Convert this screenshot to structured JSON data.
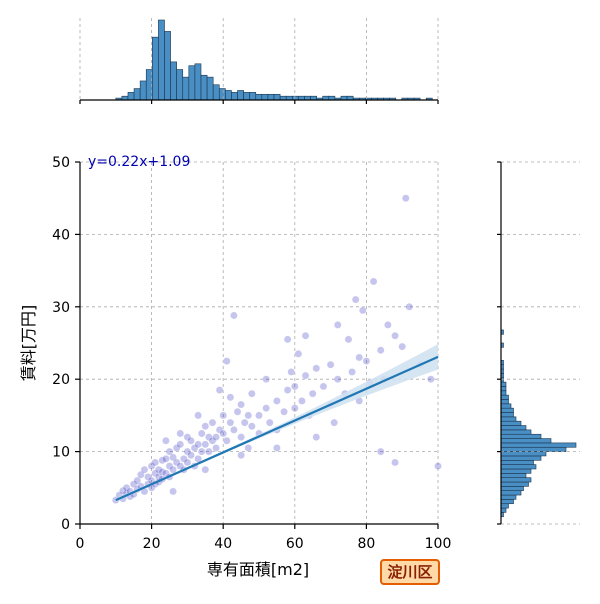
{
  "chart_data": {
    "type": "scatter",
    "subtype": "jointplot-with-regression",
    "title": "",
    "xlabel": "専有面積[m2]",
    "ylabel": "賃料[万円]",
    "xlim": [
      0,
      100
    ],
    "ylim": [
      0,
      50
    ],
    "x_ticks": [
      "0",
      "20",
      "40",
      "60",
      "80",
      "100"
    ],
    "y_ticks": [
      "0",
      "10",
      "20",
      "30",
      "40",
      "50"
    ],
    "grid": true,
    "regression_equation": "y=0.22x+1.09",
    "regression": {
      "slope": 0.22,
      "intercept": 1.09,
      "x_range": [
        10,
        100
      ],
      "ci_color": "#cfe0f0"
    },
    "point_color": "#3030c0",
    "line_color": "#1f77b4",
    "hist_color": "#4a8fc4",
    "badge_label": "淀川区",
    "points": [
      [
        10,
        3.3
      ],
      [
        11,
        4.0
      ],
      [
        12,
        4.6
      ],
      [
        12,
        3.5
      ],
      [
        13,
        4.2
      ],
      [
        13,
        5.0
      ],
      [
        14,
        3.8
      ],
      [
        14,
        4.5
      ],
      [
        15,
        4.1
      ],
      [
        15,
        5.5
      ],
      [
        16,
        4.8
      ],
      [
        16,
        6.0
      ],
      [
        17,
        5.2
      ],
      [
        17,
        6.8
      ],
      [
        18,
        4.5
      ],
      [
        18,
        7.5
      ],
      [
        19,
        5.5
      ],
      [
        19,
        6.5
      ],
      [
        20,
        6.0
      ],
      [
        20,
        8.0
      ],
      [
        20,
        5.0
      ],
      [
        21,
        7.0
      ],
      [
        21,
        5.5
      ],
      [
        21,
        8.5
      ],
      [
        22,
        6.5
      ],
      [
        22,
        7.5
      ],
      [
        22,
        5.8
      ],
      [
        23,
        7.2
      ],
      [
        23,
        8.8
      ],
      [
        23,
        6.2
      ],
      [
        24,
        7.0
      ],
      [
        24,
        9.0
      ],
      [
        25,
        8.0
      ],
      [
        25,
        6.5
      ],
      [
        25,
        10.0
      ],
      [
        26,
        7.5
      ],
      [
        26,
        9.2
      ],
      [
        27,
        8.5
      ],
      [
        27,
        10.5
      ],
      [
        28,
        8.0
      ],
      [
        28,
        11.0
      ],
      [
        29,
        9.0
      ],
      [
        29,
        7.5
      ],
      [
        30,
        10.0
      ],
      [
        30,
        8.5
      ],
      [
        30,
        12.0
      ],
      [
        31,
        9.5
      ],
      [
        31,
        11.5
      ],
      [
        32,
        10.5
      ],
      [
        32,
        8.0
      ],
      [
        33,
        11.0
      ],
      [
        33,
        9.0
      ],
      [
        34,
        12.5
      ],
      [
        34,
        10.0
      ],
      [
        35,
        11.0
      ],
      [
        35,
        13.5
      ],
      [
        36,
        10.0
      ],
      [
        36,
        12.0
      ],
      [
        37,
        11.5
      ],
      [
        37,
        14.0
      ],
      [
        38,
        12.0
      ],
      [
        38,
        10.5
      ],
      [
        39,
        13.0
      ],
      [
        40,
        12.5
      ],
      [
        40,
        15.0
      ],
      [
        41,
        11.5
      ],
      [
        42,
        14.0
      ],
      [
        42,
        17.5
      ],
      [
        43,
        13.0
      ],
      [
        44,
        15.5
      ],
      [
        45,
        12.0
      ],
      [
        45,
        16.5
      ],
      [
        46,
        14.0
      ],
      [
        47,
        15.0
      ],
      [
        48,
        13.5
      ],
      [
        48,
        18.0
      ],
      [
        50,
        15.0
      ],
      [
        50,
        12.5
      ],
      [
        52,
        16.0
      ],
      [
        53,
        14.0
      ],
      [
        55,
        17.0
      ],
      [
        55,
        13.0
      ],
      [
        57,
        15.5
      ],
      [
        58,
        18.5
      ],
      [
        59,
        21.0
      ],
      [
        60,
        16.0
      ],
      [
        60,
        19.0
      ],
      [
        61,
        23.5
      ],
      [
        62,
        17.0
      ],
      [
        63,
        20.5
      ],
      [
        64,
        15.0
      ],
      [
        65,
        18.0
      ],
      [
        66,
        21.5
      ],
      [
        68,
        19.0
      ],
      [
        70,
        22.0
      ],
      [
        70,
        16.5
      ],
      [
        72,
        20.0
      ],
      [
        74,
        18.0
      ],
      [
        75,
        25.5
      ],
      [
        76,
        21.0
      ],
      [
        78,
        23.0
      ],
      [
        78,
        17.0
      ],
      [
        79,
        29.5
      ],
      [
        80,
        22.5
      ],
      [
        81,
        19.5
      ],
      [
        82,
        33.5
      ],
      [
        84,
        24.0
      ],
      [
        85,
        20.0
      ],
      [
        88,
        26.0
      ],
      [
        88,
        8.5
      ],
      [
        90,
        24.5
      ],
      [
        91,
        45.0
      ],
      [
        92,
        30.0
      ],
      [
        95,
        22.0
      ],
      [
        98,
        20.0
      ],
      [
        100,
        8.0
      ],
      [
        41,
        22.5
      ],
      [
        43,
        28.8
      ],
      [
        58,
        25.5
      ],
      [
        63,
        26.0
      ],
      [
        72,
        27.5
      ],
      [
        77,
        31.0
      ],
      [
        86,
        27.5
      ],
      [
        26,
        4.5
      ],
      [
        35,
        7.5
      ],
      [
        45,
        9.5
      ],
      [
        55,
        10.5
      ],
      [
        66,
        12.0
      ],
      [
        71,
        14.0
      ],
      [
        84,
        10.0
      ],
      [
        52,
        20.0
      ],
      [
        39,
        18.5
      ],
      [
        47,
        10.5
      ],
      [
        33,
        15.0
      ],
      [
        28,
        12.5
      ],
      [
        24,
        11.5
      ]
    ],
    "top_hist": {
      "bin_start": 10,
      "bin_width": 1.7,
      "counts": [
        1,
        2,
        4,
        6,
        10,
        16,
        33,
        42,
        36,
        20,
        16,
        12,
        18,
        19,
        13,
        12,
        8,
        6,
        5,
        4,
        5,
        4,
        4,
        3,
        3,
        3,
        3,
        2,
        2,
        2,
        2,
        2,
        2,
        1,
        2,
        2,
        1,
        2,
        2,
        1,
        1,
        1,
        1,
        1,
        1,
        1,
        0,
        1,
        1,
        1,
        0,
        1,
        0
      ]
    },
    "right_hist": {
      "bin_start": 1,
      "bin_width": 0.6,
      "counts": [
        1,
        2,
        3,
        5,
        6,
        8,
        9,
        11,
        12,
        10,
        12,
        14,
        13,
        16,
        18,
        26,
        30,
        20,
        16,
        12,
        10,
        8,
        6,
        5,
        5,
        4,
        3,
        3,
        2,
        2,
        2,
        1,
        1,
        1,
        1,
        1,
        0,
        0,
        0,
        1,
        0,
        0,
        1
      ]
    }
  }
}
